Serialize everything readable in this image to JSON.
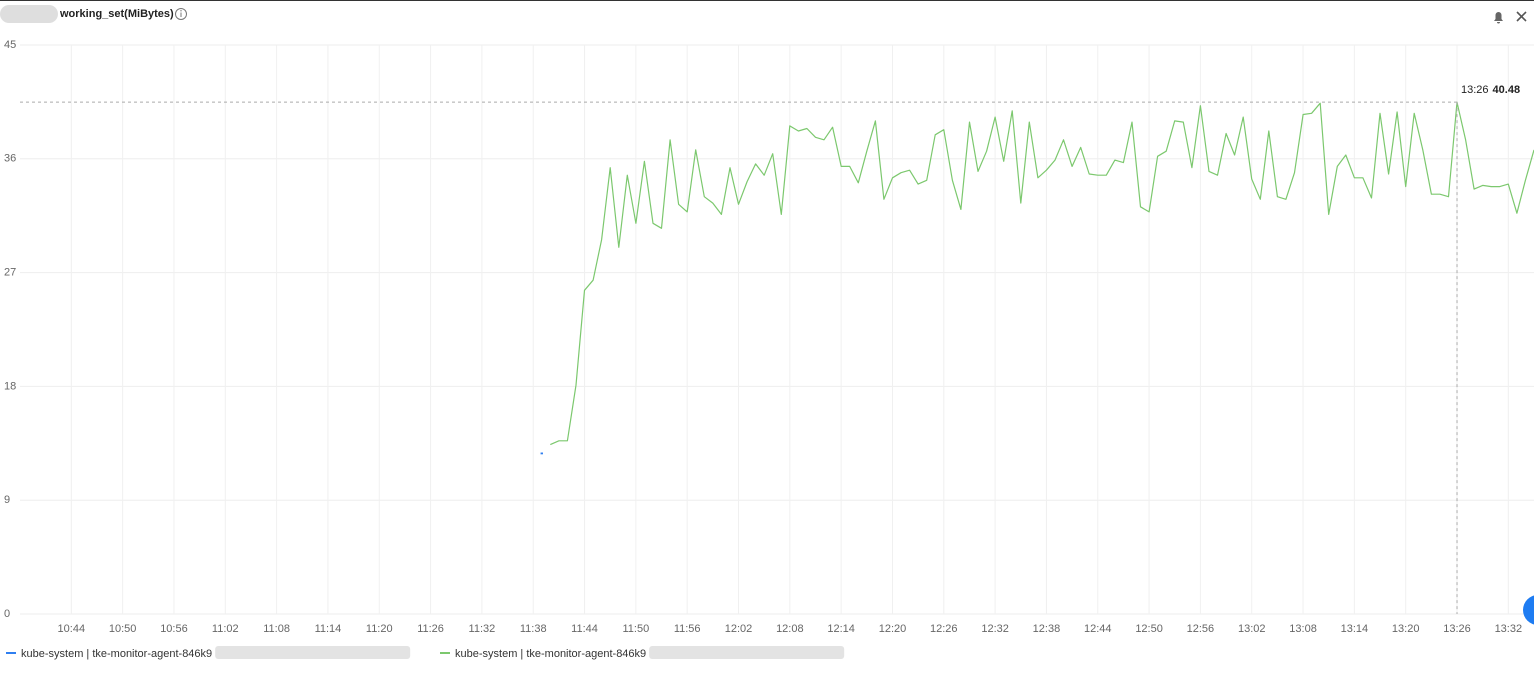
{
  "chart_data": {
    "type": "line",
    "title": "working_set(MiBytes)",
    "x": [
      "11:39",
      "11:40",
      "11:41",
      "11:42",
      "11:43",
      "11:44",
      "11:45",
      "11:46",
      "11:47",
      "11:48",
      "11:49",
      "11:50",
      "11:51",
      "11:52",
      "11:53",
      "11:54",
      "11:55",
      "11:56",
      "11:57",
      "11:58",
      "11:59",
      "12:00",
      "12:01",
      "12:02",
      "12:03",
      "12:04",
      "12:05",
      "12:06",
      "12:07",
      "12:08",
      "12:09",
      "12:10",
      "12:11",
      "12:12",
      "12:13",
      "12:14",
      "12:15",
      "12:16",
      "12:17",
      "12:18",
      "12:19",
      "12:20",
      "12:21",
      "12:22",
      "12:23",
      "12:24",
      "12:25",
      "12:26",
      "12:27",
      "12:28",
      "12:29",
      "12:30",
      "12:31",
      "12:32",
      "12:33",
      "12:34",
      "12:35",
      "12:36",
      "12:37",
      "12:38",
      "12:39",
      "12:40",
      "12:41",
      "12:42",
      "12:43",
      "12:44",
      "12:45",
      "12:46",
      "12:47",
      "12:48",
      "12:49",
      "12:50",
      "12:51",
      "12:52",
      "12:53",
      "12:54",
      "12:55",
      "12:56",
      "12:57",
      "12:58",
      "12:59",
      "13:00",
      "13:01",
      "13:02",
      "13:03",
      "13:04",
      "13:05",
      "13:06",
      "13:07",
      "13:08",
      "13:09",
      "13:10",
      "13:11",
      "13:12",
      "13:13",
      "13:14",
      "13:15",
      "13:16",
      "13:17",
      "13:18",
      "13:19",
      "13:20",
      "13:21",
      "13:22",
      "13:23",
      "13:24",
      "13:25",
      "13:26",
      "13:27",
      "13:28",
      "13:29",
      "13:30",
      "13:31",
      "13:32",
      "13:33",
      "13:34",
      "13:35"
    ],
    "series": [
      {
        "name": "kube-system | tke-monitor-agent-846k9",
        "color": "#2f7ff0",
        "values": [
          12.7,
          null,
          null,
          null,
          null,
          null,
          null,
          null,
          null,
          null,
          null,
          null,
          null,
          null,
          null,
          null,
          null,
          null,
          null,
          null,
          null,
          null,
          null,
          null,
          null,
          null,
          null,
          null,
          null,
          null,
          null,
          null,
          null,
          null,
          null,
          null,
          null,
          null,
          null,
          null,
          null,
          null,
          null,
          null,
          null,
          null,
          null,
          null,
          null,
          null,
          null,
          null,
          null,
          null,
          null,
          null,
          null,
          null,
          null,
          null,
          null,
          null,
          null,
          null,
          null,
          null,
          null,
          null,
          null,
          null,
          null,
          null,
          null,
          null,
          null,
          null,
          null,
          null,
          null,
          null,
          null,
          null,
          null,
          null,
          null,
          null,
          null,
          null,
          null,
          null,
          null,
          null,
          null,
          null,
          null,
          null,
          null,
          null,
          null,
          null,
          null,
          null,
          null,
          null,
          null,
          null,
          null,
          null,
          null,
          null,
          null,
          null,
          null,
          null,
          null,
          null,
          null
        ]
      },
      {
        "name": "kube-system | tke-monitor-agent-846k9",
        "color": "#7cc86e",
        "values": [
          null,
          13.4,
          13.7,
          13.7,
          18.1,
          25.6,
          26.4,
          29.6,
          35.3,
          29.0,
          34.7,
          30.9,
          35.8,
          30.9,
          30.5,
          37.5,
          32.4,
          31.8,
          36.7,
          33.0,
          32.5,
          31.6,
          35.3,
          32.4,
          34.2,
          35.6,
          34.7,
          36.4,
          31.6,
          38.6,
          38.2,
          38.4,
          37.7,
          37.5,
          38.5,
          35.4,
          35.4,
          34.1,
          36.6,
          39.0,
          32.8,
          34.5,
          34.9,
          35.1,
          34.0,
          34.3,
          37.9,
          38.3,
          34.3,
          32.0,
          38.9,
          35.0,
          36.6,
          39.3,
          35.8,
          39.8,
          32.5,
          38.9,
          34.5,
          35.1,
          35.9,
          37.5,
          35.4,
          36.9,
          34.8,
          34.7,
          34.7,
          35.9,
          35.7,
          38.9,
          32.2,
          31.8,
          36.2,
          36.6,
          39.0,
          38.9,
          35.3,
          40.2,
          35.0,
          34.7,
          38.0,
          36.3,
          39.3,
          34.4,
          32.8,
          38.2,
          33.0,
          32.8,
          34.9,
          39.5,
          39.6,
          40.4,
          31.6,
          35.4,
          36.3,
          34.5,
          34.5,
          32.9,
          39.6,
          34.8,
          39.7,
          33.8,
          39.6,
          36.7,
          33.2,
          33.2,
          33.0,
          40.48,
          37.5,
          33.6,
          33.9,
          33.8,
          33.8,
          34.0,
          31.7,
          34.3,
          36.7
        ]
      }
    ],
    "xlim": [
      "10:38",
      "13:35"
    ],
    "xticks": [
      "10:44",
      "10:50",
      "10:56",
      "11:02",
      "11:08",
      "11:14",
      "11:20",
      "11:26",
      "11:32",
      "11:38",
      "11:44",
      "11:50",
      "11:56",
      "12:02",
      "12:08",
      "12:14",
      "12:20",
      "12:26",
      "12:32",
      "12:38",
      "12:44",
      "12:50",
      "12:56",
      "13:02",
      "13:08",
      "13:14",
      "13:20",
      "13:26",
      "13:32"
    ],
    "ylim": [
      0,
      45
    ],
    "yticks": [
      0,
      9,
      18,
      27,
      36,
      45
    ],
    "grid": true,
    "tooltip": {
      "time": "13:26",
      "value": 40.48
    }
  }
}
